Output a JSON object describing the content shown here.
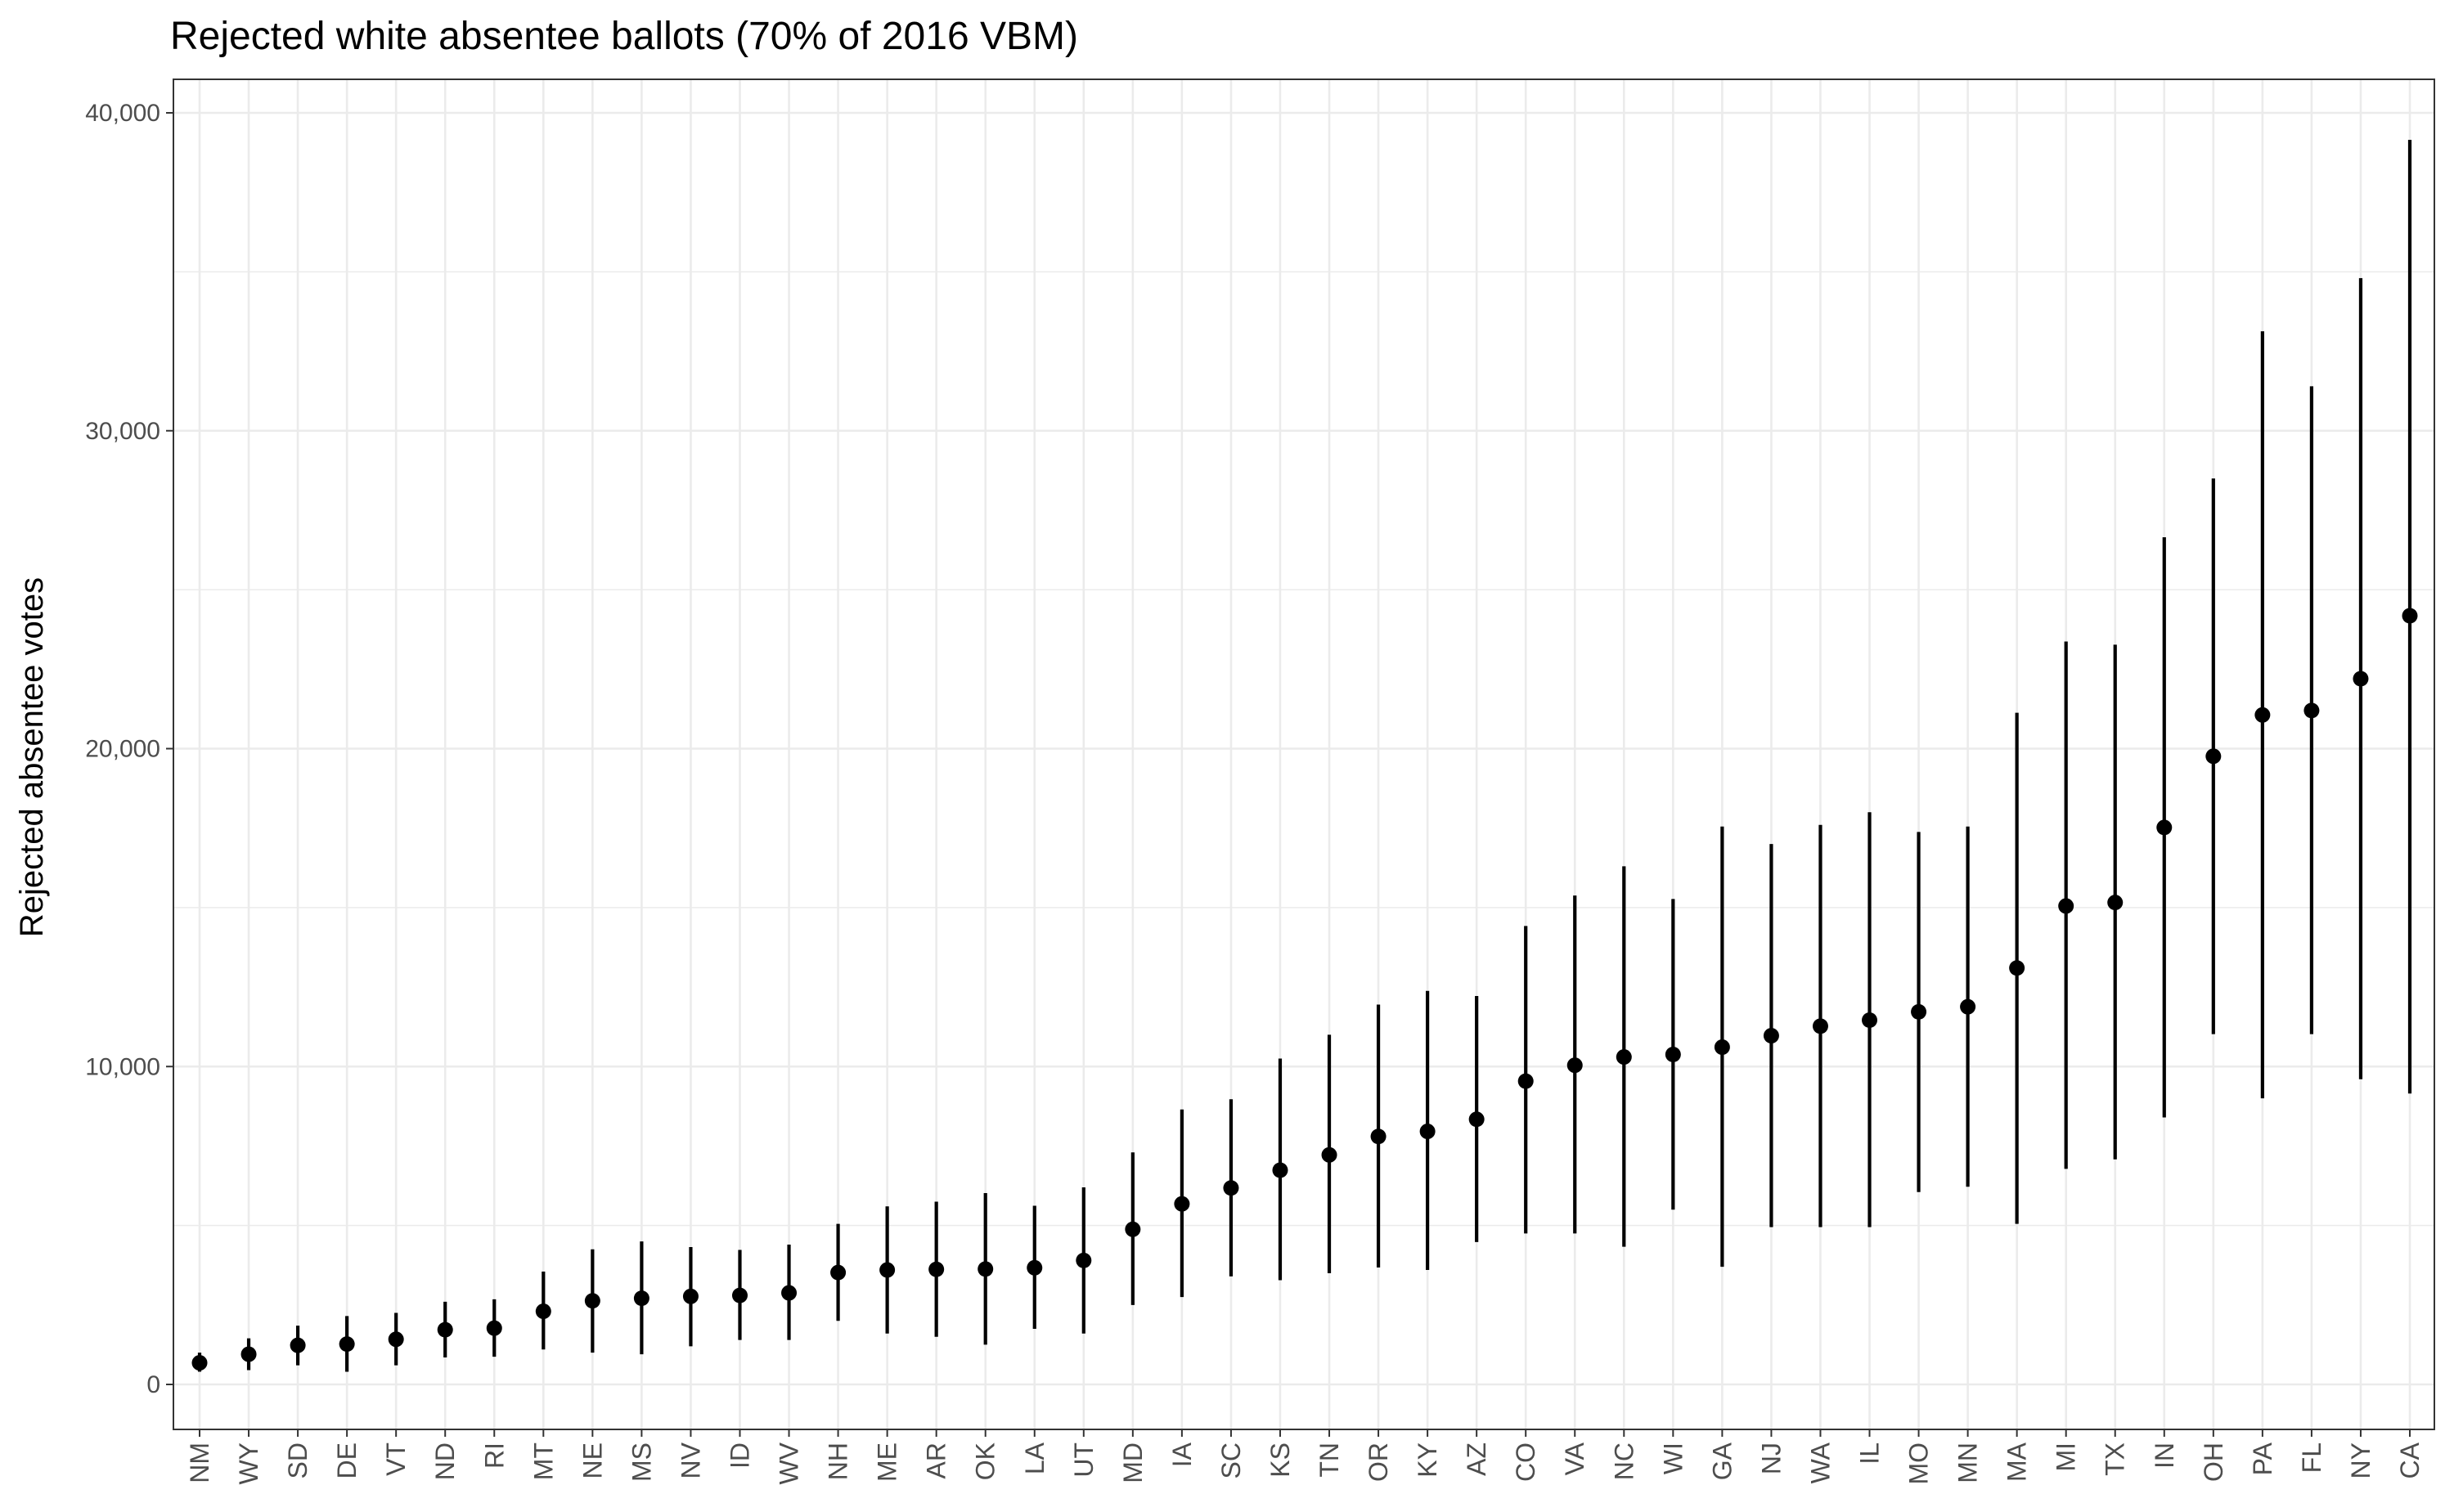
{
  "chart_data": {
    "type": "scatter",
    "subtype": "point-with-errorbars",
    "title": "Rejected white absentee ballots (70% of 2016 VBM)",
    "xlabel": "",
    "ylabel": "Rejected absentee votes",
    "ylim": [
      -1500,
      41000
    ],
    "yticks": [
      0,
      10000,
      20000,
      30000,
      40000
    ],
    "ytick_labels": [
      "0",
      "10,000",
      "20,000",
      "30,000",
      "40,000"
    ],
    "grid": true,
    "legend": "none",
    "points": [
      {
        "state": "NM",
        "value": 680,
        "lower": 400,
        "upper": 1000
      },
      {
        "state": "WY",
        "value": 950,
        "lower": 450,
        "upper": 1450
      },
      {
        "state": "SD",
        "value": 1230,
        "lower": 600,
        "upper": 1850
      },
      {
        "state": "DE",
        "value": 1270,
        "lower": 400,
        "upper": 2150
      },
      {
        "state": "VT",
        "value": 1420,
        "lower": 600,
        "upper": 2250
      },
      {
        "state": "ND",
        "value": 1720,
        "lower": 850,
        "upper": 2600
      },
      {
        "state": "RI",
        "value": 1770,
        "lower": 870,
        "upper": 2680
      },
      {
        "state": "MT",
        "value": 2300,
        "lower": 1100,
        "upper": 3550
      },
      {
        "state": "NE",
        "value": 2630,
        "lower": 1000,
        "upper": 4250
      },
      {
        "state": "MS",
        "value": 2710,
        "lower": 950,
        "upper": 4500
      },
      {
        "state": "NV",
        "value": 2770,
        "lower": 1200,
        "upper": 4320
      },
      {
        "state": "ID",
        "value": 2800,
        "lower": 1400,
        "upper": 4230
      },
      {
        "state": "WV",
        "value": 2880,
        "lower": 1400,
        "upper": 4400
      },
      {
        "state": "NH",
        "value": 3520,
        "lower": 2000,
        "upper": 5050
      },
      {
        "state": "ME",
        "value": 3600,
        "lower": 1600,
        "upper": 5600
      },
      {
        "state": "AR",
        "value": 3620,
        "lower": 1500,
        "upper": 5750
      },
      {
        "state": "OK",
        "value": 3630,
        "lower": 1250,
        "upper": 6020
      },
      {
        "state": "LA",
        "value": 3670,
        "lower": 1750,
        "upper": 5620
      },
      {
        "state": "UT",
        "value": 3900,
        "lower": 1600,
        "upper": 6200
      },
      {
        "state": "MD",
        "value": 4880,
        "lower": 2500,
        "upper": 7300
      },
      {
        "state": "IA",
        "value": 5680,
        "lower": 2750,
        "upper": 8650
      },
      {
        "state": "SC",
        "value": 6180,
        "lower": 3400,
        "upper": 8970
      },
      {
        "state": "KS",
        "value": 6740,
        "lower": 3280,
        "upper": 10250
      },
      {
        "state": "TN",
        "value": 7220,
        "lower": 3500,
        "upper": 11000
      },
      {
        "state": "OR",
        "value": 7800,
        "lower": 3680,
        "upper": 11950
      },
      {
        "state": "KY",
        "value": 7960,
        "lower": 3600,
        "upper": 12380
      },
      {
        "state": "AZ",
        "value": 8340,
        "lower": 4480,
        "upper": 12220
      },
      {
        "state": "CO",
        "value": 9540,
        "lower": 4750,
        "upper": 14420
      },
      {
        "state": "VA",
        "value": 10040,
        "lower": 4750,
        "upper": 15380
      },
      {
        "state": "NC",
        "value": 10300,
        "lower": 4330,
        "upper": 16300
      },
      {
        "state": "WI",
        "value": 10380,
        "lower": 5500,
        "upper": 15270
      },
      {
        "state": "GA",
        "value": 10610,
        "lower": 3700,
        "upper": 17550
      },
      {
        "state": "NJ",
        "value": 10970,
        "lower": 4950,
        "upper": 17000
      },
      {
        "state": "WA",
        "value": 11270,
        "lower": 4950,
        "upper": 17600
      },
      {
        "state": "IL",
        "value": 11460,
        "lower": 4950,
        "upper": 18000
      },
      {
        "state": "MO",
        "value": 11720,
        "lower": 6050,
        "upper": 17380
      },
      {
        "state": "MN",
        "value": 11880,
        "lower": 6220,
        "upper": 17550
      },
      {
        "state": "MA",
        "value": 13100,
        "lower": 5050,
        "upper": 21130
      },
      {
        "state": "MI",
        "value": 15050,
        "lower": 6780,
        "upper": 23370
      },
      {
        "state": "TX",
        "value": 15160,
        "lower": 7080,
        "upper": 23270
      },
      {
        "state": "IN",
        "value": 17520,
        "lower": 8400,
        "upper": 26650
      },
      {
        "state": "OH",
        "value": 19760,
        "lower": 11020,
        "upper": 28500
      },
      {
        "state": "PA",
        "value": 21060,
        "lower": 9000,
        "upper": 33130
      },
      {
        "state": "FL",
        "value": 21200,
        "lower": 11020,
        "upper": 31400
      },
      {
        "state": "NY",
        "value": 22200,
        "lower": 9600,
        "upper": 34800
      },
      {
        "state": "CA",
        "value": 24180,
        "lower": 9150,
        "upper": 39150
      }
    ]
  }
}
